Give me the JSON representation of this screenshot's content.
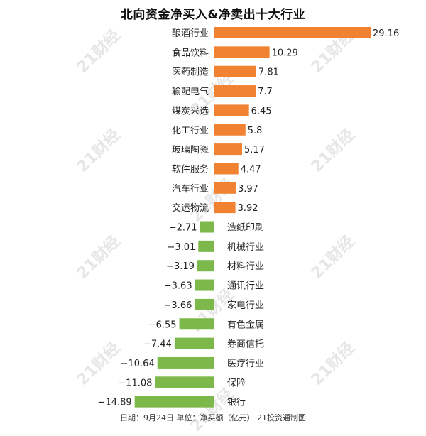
{
  "title": "北向资金净买入&净卖出十大行业",
  "footer": "日期：9月24日 单位：净买额（亿元） 21投资通制图",
  "watermark": "21财经",
  "colors": {
    "positive": "#f08232",
    "negative": "#7cb84a",
    "text": "#222222",
    "watermark": "#e6e6e6"
  },
  "chart_data": {
    "type": "bar",
    "orientation": "horizontal",
    "title": "北向资金净买入&净卖出十大行业",
    "categories": [
      "酿酒行业",
      "食品饮料",
      "医药制造",
      "输配电气",
      "煤炭采选",
      "化工行业",
      "玻璃陶瓷",
      "软件服务",
      "汽车行业",
      "交运物流",
      "造纸印刷",
      "机械行业",
      "材料行业",
      "通讯行业",
      "家电行业",
      "有色金属",
      "券商信托",
      "医疗行业",
      "保险",
      "银行"
    ],
    "values": [
      29.16,
      10.29,
      7.81,
      7.7,
      6.45,
      5.8,
      5.17,
      4.47,
      3.97,
      3.92,
      -2.71,
      -3.01,
      -3.19,
      -3.63,
      -3.66,
      -6.55,
      -7.44,
      -10.64,
      -11.08,
      -14.89
    ],
    "value_labels": [
      "29.16",
      "10.29",
      "7.81",
      "7.7",
      "6.45",
      "5.8",
      "5.17",
      "4.47",
      "3.97",
      "3.92",
      "−2.71",
      "−3.01",
      "−3.19",
      "−3.63",
      "−3.66",
      "−6.55",
      "−7.44",
      "−10.64",
      "−11.08",
      "−14.89"
    ],
    "unit": "亿元"
  }
}
